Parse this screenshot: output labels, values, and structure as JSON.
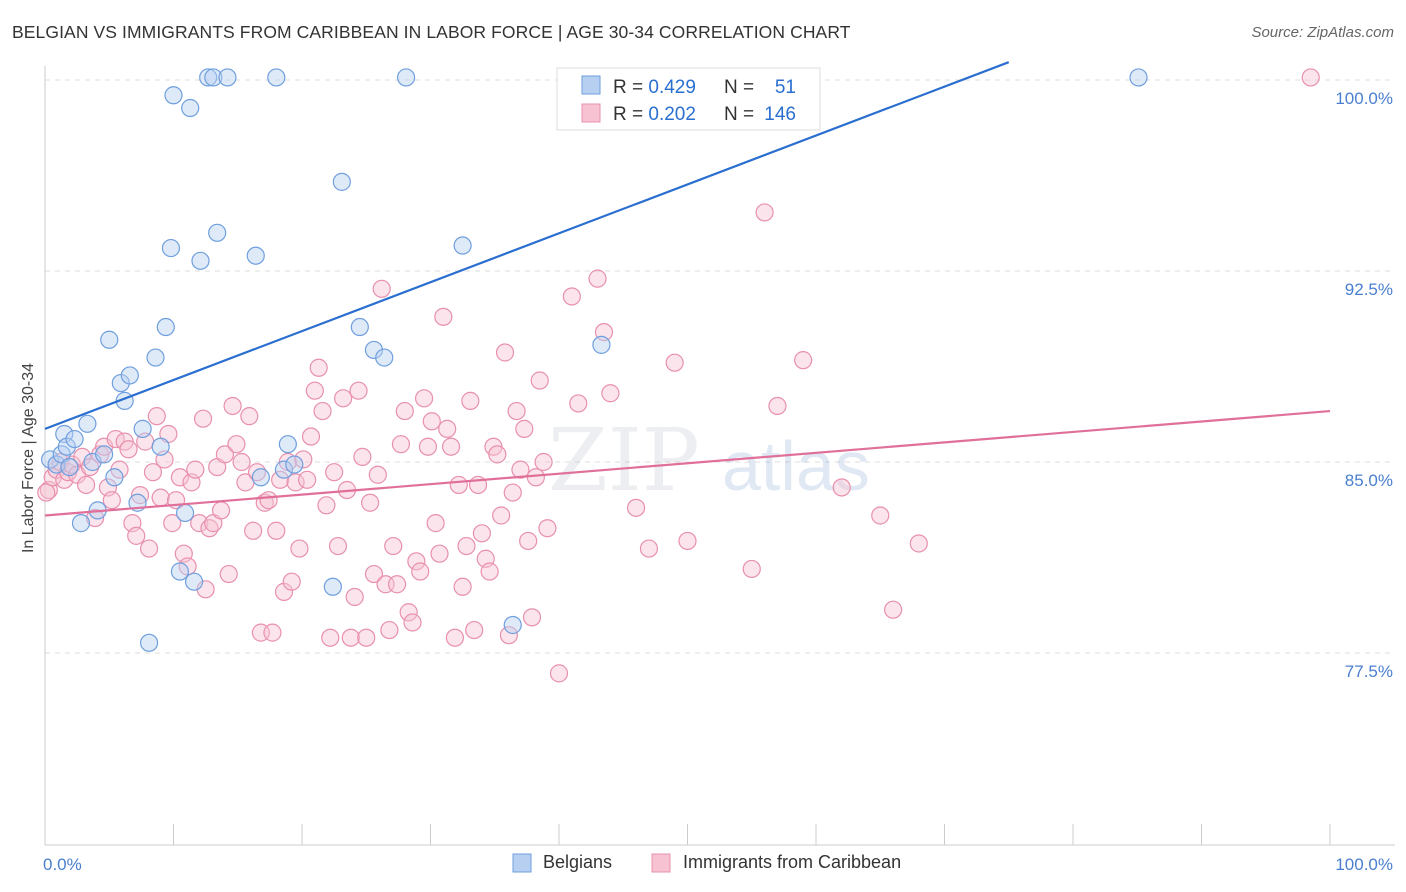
{
  "title": "BELGIAN VS IMMIGRANTS FROM CARIBBEAN IN LABOR FORCE | AGE 30-34 CORRELATION CHART",
  "source": "Source: ZipAtlas.com",
  "watermark": {
    "zip": "ZIP",
    "atlas": "atlas"
  },
  "colors": {
    "blue_fill": "#b7d0f2",
    "blue_stroke": "#6f9fde",
    "blue_line": "#2a6fd0",
    "pink_fill": "#f7c3d3",
    "pink_stroke": "#e890ad",
    "pink_line": "#e0709a",
    "tick_text": "#4a7fd0",
    "grid": "#dddddd"
  },
  "stats_legend": {
    "rows": [
      {
        "r_label": "R = ",
        "r_value": "0.429",
        "n_label": "N = ",
        "n_value": "51"
      },
      {
        "r_label": "R = ",
        "r_value": "0.202",
        "n_label": "N = ",
        "n_value": "146"
      }
    ]
  },
  "chart_data": {
    "type": "scatter",
    "title": "BELGIAN VS IMMIGRANTS FROM CARIBBEAN IN LABOR FORCE | AGE 30-34 CORRELATION CHART",
    "xlabel": "",
    "ylabel": "In Labor Force | Age 30-34",
    "xlim": [
      0,
      100
    ],
    "ylim": [
      71,
      100.7
    ],
    "x_tick_labels": [
      "0.0%",
      "100.0%"
    ],
    "y_ticks": [
      77.5,
      85.0,
      92.5,
      100.0
    ],
    "y_tick_labels": [
      "77.5%",
      "85.0%",
      "92.5%",
      "100.0%"
    ],
    "grid": true,
    "legend_position": "bottom",
    "series": [
      {
        "name": "Belgians",
        "trend": {
          "x": [
            0,
            75
          ],
          "y": [
            86.3,
            100.7
          ]
        },
        "points": [
          [
            0.4,
            85.1
          ],
          [
            0.9,
            84.9
          ],
          [
            1.3,
            85.3
          ],
          [
            1.5,
            86.1
          ],
          [
            1.7,
            85.6
          ],
          [
            1.9,
            84.8
          ],
          [
            2.3,
            85.9
          ],
          [
            2.8,
            82.6
          ],
          [
            3.3,
            86.5
          ],
          [
            3.7,
            85.0
          ],
          [
            4.1,
            83.1
          ],
          [
            4.6,
            85.3
          ],
          [
            5.0,
            89.8
          ],
          [
            5.4,
            84.4
          ],
          [
            5.9,
            88.1
          ],
          [
            6.2,
            87.4
          ],
          [
            6.6,
            88.4
          ],
          [
            7.2,
            83.4
          ],
          [
            7.6,
            86.3
          ],
          [
            8.1,
            77.9
          ],
          [
            8.6,
            89.1
          ],
          [
            9.0,
            85.6
          ],
          [
            9.4,
            90.3
          ],
          [
            9.8,
            93.4
          ],
          [
            10.0,
            99.4
          ],
          [
            10.5,
            80.7
          ],
          [
            10.9,
            83.0
          ],
          [
            11.3,
            98.9
          ],
          [
            11.6,
            80.3
          ],
          [
            12.1,
            92.9
          ],
          [
            12.7,
            100.1
          ],
          [
            13.1,
            100.1
          ],
          [
            13.4,
            94.0
          ],
          [
            14.2,
            100.1
          ],
          [
            16.4,
            93.1
          ],
          [
            16.8,
            84.4
          ],
          [
            18.0,
            100.1
          ],
          [
            18.6,
            84.7
          ],
          [
            18.9,
            85.7
          ],
          [
            19.4,
            84.9
          ],
          [
            22.4,
            80.1
          ],
          [
            23.1,
            96.0
          ],
          [
            24.5,
            90.3
          ],
          [
            25.6,
            89.4
          ],
          [
            26.4,
            89.1
          ],
          [
            28.1,
            100.1
          ],
          [
            32.5,
            93.5
          ],
          [
            36.4,
            78.6
          ],
          [
            43.3,
            89.6
          ],
          [
            52.6,
            100.1
          ],
          [
            85.1,
            100.1
          ]
        ]
      },
      {
        "name": "Immigrants from Caribbean",
        "trend": {
          "x": [
            0,
            100
          ],
          "y": [
            82.9,
            87.0
          ]
        },
        "points": [
          [
            0.3,
            83.9
          ],
          [
            0.6,
            84.4
          ],
          [
            0.9,
            84.7
          ],
          [
            1.2,
            85.0
          ],
          [
            1.5,
            84.3
          ],
          [
            1.8,
            84.6
          ],
          [
            2.1,
            84.9
          ],
          [
            2.5,
            84.5
          ],
          [
            2.9,
            85.2
          ],
          [
            3.2,
            84.1
          ],
          [
            3.5,
            84.8
          ],
          [
            3.9,
            82.8
          ],
          [
            4.3,
            85.3
          ],
          [
            4.6,
            85.6
          ],
          [
            4.9,
            84.0
          ],
          [
            5.2,
            83.5
          ],
          [
            5.5,
            85.9
          ],
          [
            5.8,
            84.7
          ],
          [
            6.2,
            85.8
          ],
          [
            6.5,
            85.5
          ],
          [
            6.8,
            82.6
          ],
          [
            7.1,
            82.1
          ],
          [
            7.4,
            83.7
          ],
          [
            7.8,
            85.8
          ],
          [
            8.1,
            81.6
          ],
          [
            8.4,
            84.6
          ],
          [
            8.7,
            86.8
          ],
          [
            9.0,
            83.6
          ],
          [
            9.3,
            85.1
          ],
          [
            9.6,
            86.1
          ],
          [
            9.9,
            82.6
          ],
          [
            10.2,
            83.5
          ],
          [
            10.5,
            84.4
          ],
          [
            10.8,
            81.4
          ],
          [
            11.1,
            80.9
          ],
          [
            11.4,
            84.2
          ],
          [
            11.7,
            84.7
          ],
          [
            12.0,
            82.6
          ],
          [
            12.3,
            86.7
          ],
          [
            12.5,
            80.0
          ],
          [
            12.8,
            82.4
          ],
          [
            13.1,
            82.6
          ],
          [
            13.4,
            84.8
          ],
          [
            13.7,
            83.1
          ],
          [
            14.0,
            85.3
          ],
          [
            14.3,
            80.6
          ],
          [
            14.6,
            87.2
          ],
          [
            14.9,
            85.7
          ],
          [
            15.3,
            85.0
          ],
          [
            15.6,
            84.2
          ],
          [
            15.9,
            86.8
          ],
          [
            16.2,
            82.3
          ],
          [
            16.5,
            84.6
          ],
          [
            16.8,
            78.3
          ],
          [
            17.1,
            83.4
          ],
          [
            17.4,
            83.5
          ],
          [
            17.7,
            78.3
          ],
          [
            18.0,
            82.3
          ],
          [
            18.3,
            84.3
          ],
          [
            18.6,
            79.9
          ],
          [
            18.9,
            85.0
          ],
          [
            19.2,
            80.3
          ],
          [
            19.5,
            84.2
          ],
          [
            19.8,
            81.6
          ],
          [
            20.1,
            85.1
          ],
          [
            20.4,
            84.3
          ],
          [
            20.7,
            86.0
          ],
          [
            21.0,
            87.8
          ],
          [
            21.3,
            88.7
          ],
          [
            21.6,
            87.0
          ],
          [
            21.9,
            83.3
          ],
          [
            22.2,
            78.1
          ],
          [
            22.5,
            84.6
          ],
          [
            22.8,
            81.7
          ],
          [
            23.2,
            87.5
          ],
          [
            23.5,
            83.9
          ],
          [
            23.8,
            78.1
          ],
          [
            24.1,
            79.7
          ],
          [
            24.4,
            87.8
          ],
          [
            24.7,
            85.2
          ],
          [
            25.0,
            78.1
          ],
          [
            25.3,
            83.4
          ],
          [
            25.6,
            80.6
          ],
          [
            25.9,
            84.5
          ],
          [
            26.2,
            91.8
          ],
          [
            26.5,
            80.2
          ],
          [
            26.8,
            78.4
          ],
          [
            27.1,
            81.7
          ],
          [
            27.4,
            80.2
          ],
          [
            27.7,
            85.7
          ],
          [
            28.0,
            87.0
          ],
          [
            28.3,
            79.1
          ],
          [
            28.6,
            78.7
          ],
          [
            28.9,
            81.1
          ],
          [
            29.2,
            80.7
          ],
          [
            29.5,
            87.5
          ],
          [
            29.8,
            85.6
          ],
          [
            30.1,
            86.6
          ],
          [
            30.4,
            82.6
          ],
          [
            30.7,
            81.4
          ],
          [
            31.0,
            90.7
          ],
          [
            31.3,
            86.3
          ],
          [
            31.6,
            85.6
          ],
          [
            31.9,
            78.1
          ],
          [
            32.2,
            84.1
          ],
          [
            32.5,
            80.1
          ],
          [
            32.8,
            81.7
          ],
          [
            33.1,
            87.4
          ],
          [
            33.4,
            78.4
          ],
          [
            33.7,
            84.1
          ],
          [
            34.0,
            82.2
          ],
          [
            34.3,
            81.2
          ],
          [
            34.6,
            80.7
          ],
          [
            34.9,
            85.6
          ],
          [
            35.2,
            85.3
          ],
          [
            35.5,
            82.9
          ],
          [
            35.8,
            89.3
          ],
          [
            36.1,
            78.2
          ],
          [
            36.4,
            83.8
          ],
          [
            36.7,
            87.0
          ],
          [
            37.0,
            84.7
          ],
          [
            37.3,
            86.3
          ],
          [
            37.6,
            81.9
          ],
          [
            37.9,
            78.9
          ],
          [
            38.2,
            84.4
          ],
          [
            38.5,
            88.2
          ],
          [
            38.8,
            85.0
          ],
          [
            39.1,
            82.4
          ],
          [
            40.0,
            76.7
          ],
          [
            41.0,
            91.5
          ],
          [
            41.5,
            87.3
          ],
          [
            43.0,
            92.2
          ],
          [
            43.5,
            90.1
          ],
          [
            44.0,
            87.7
          ],
          [
            46.0,
            83.2
          ],
          [
            47.0,
            81.6
          ],
          [
            49.0,
            88.9
          ],
          [
            50.0,
            81.9
          ],
          [
            55.0,
            80.8
          ],
          [
            56.0,
            94.8
          ],
          [
            57.0,
            87.2
          ],
          [
            59.0,
            89.0
          ],
          [
            62.0,
            84.0
          ],
          [
            65.0,
            82.9
          ],
          [
            66.0,
            79.2
          ],
          [
            68.0,
            81.8
          ],
          [
            98.5,
            100.1
          ],
          [
            0.1,
            83.8
          ]
        ]
      }
    ]
  },
  "bottom_legend": [
    {
      "label": "Belgians"
    },
    {
      "label": "Immigrants from Caribbean"
    }
  ]
}
